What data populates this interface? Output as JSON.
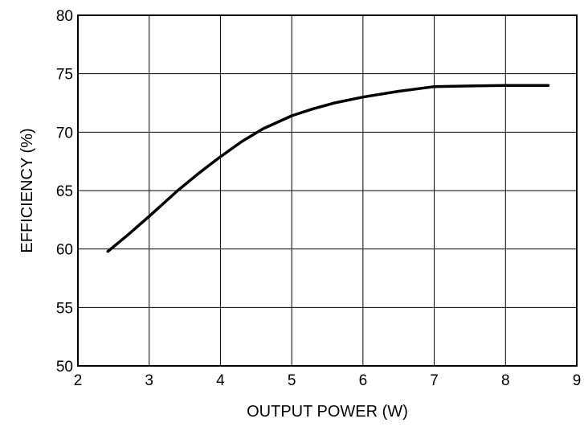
{
  "chart_data": {
    "type": "line",
    "title": "",
    "xlabel": "OUTPUT POWER (W)",
    "ylabel": "EFFICIENCY (%)",
    "xlim": [
      2,
      9
    ],
    "ylim": [
      50,
      80
    ],
    "xticks": [
      2,
      3,
      4,
      5,
      6,
      7,
      8,
      9
    ],
    "yticks": [
      50,
      55,
      60,
      65,
      70,
      75,
      80
    ],
    "grid": true,
    "series": [
      {
        "color": "#000000",
        "x": [
          2.42,
          2.7,
          3.0,
          3.4,
          3.7,
          4.0,
          4.3,
          4.6,
          5.0,
          5.3,
          5.6,
          6.0,
          6.5,
          7.0,
          7.5,
          8.0,
          8.6
        ],
        "y": [
          59.8,
          61.2,
          62.8,
          65.0,
          66.5,
          67.9,
          69.2,
          70.3,
          71.4,
          72.0,
          72.5,
          73.0,
          73.5,
          73.9,
          73.95,
          74.0,
          74.0
        ]
      }
    ]
  }
}
